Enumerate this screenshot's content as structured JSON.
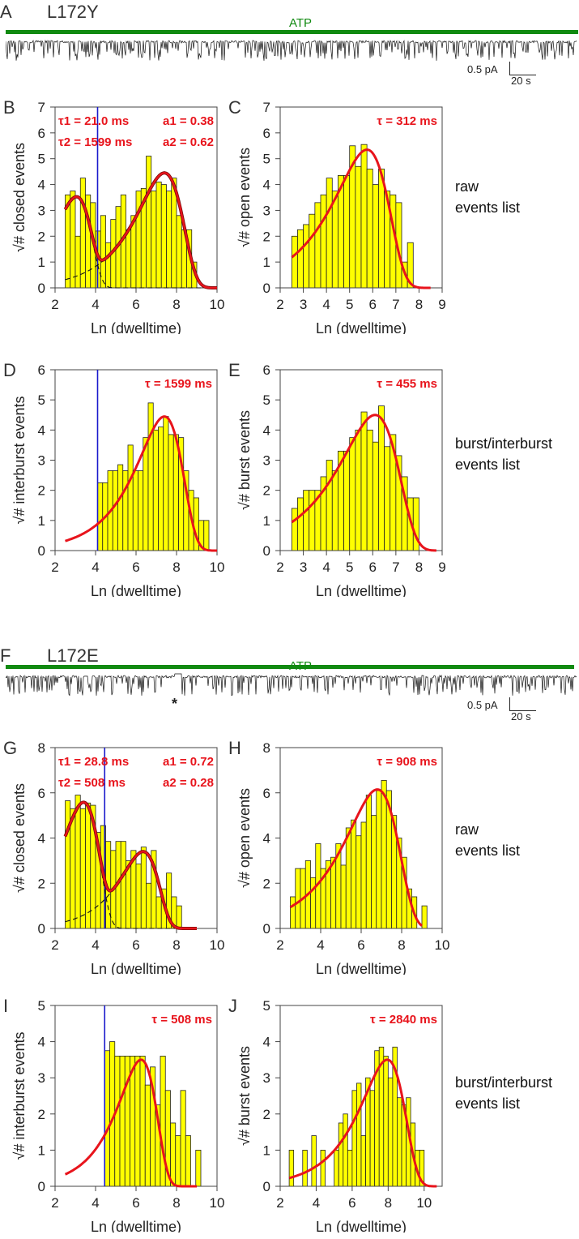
{
  "figure": {
    "section_top": {
      "panel": "A",
      "mutant": "L172Y",
      "atp_label": "ATP",
      "scale_current": "0.5 pA",
      "scale_time": "20 s"
    },
    "section_bottom": {
      "panel": "F",
      "mutant": "L172E",
      "atp_label": "ATP",
      "scale_current": "0.5 pA",
      "scale_time": "20 s",
      "marker": "*"
    },
    "row_labels": [
      {
        "line1": "raw",
        "line2": "events list"
      },
      {
        "line1": "burst/interburst",
        "line2": "events list"
      },
      {
        "line1": "raw",
        "line2": "events list"
      },
      {
        "line1": "burst/interburst",
        "line2": "events list"
      }
    ],
    "colors": {
      "bar_fill": "#ffff00",
      "fit": "#e8141c",
      "total_fit_dark": "#7a0a0a",
      "cutoff": "#1a1acc",
      "atp_bar": "#118a11"
    }
  },
  "chart_data": [
    {
      "id": "B",
      "type": "bar",
      "xlabel": "Ln (dwelltime)",
      "ylabel": "√# closed events",
      "xlim": [
        2,
        10
      ],
      "ylim": [
        0,
        7
      ],
      "xticks": [
        2,
        4,
        6,
        8,
        10
      ],
      "yticks": [
        0,
        1,
        2,
        3,
        4,
        5,
        6,
        7
      ],
      "bin_start": 2.5,
      "bin_width": 0.25,
      "values": [
        3.6,
        3.75,
        2.0,
        4.25,
        3.6,
        3.3,
        2.2,
        2.8,
        1.75,
        2.65,
        3.15,
        3.6,
        2.25,
        2.8,
        3.75,
        3.85,
        5.1,
        3.75,
        4.1,
        4.0,
        3.75,
        4.25,
        2.8,
        2.25,
        2.25,
        1.0
      ],
      "cutoff": 4.1,
      "annotations": {
        "tau1": "τ1 = 21.0 ms",
        "tau2": "τ2 = 1599 ms",
        "a1": "a1 = 0.38",
        "a2": "a2 = 0.62"
      },
      "fit": {
        "components": [
          {
            "peak_x": 3.05,
            "peak_y": 3.5,
            "width": 1.0
          },
          {
            "peak_x": 7.4,
            "peak_y": 4.45,
            "width": 1.25
          }
        ],
        "x_range": [
          2.5,
          10
        ]
      }
    },
    {
      "id": "C",
      "type": "bar",
      "xlabel": "Ln (dwelltime)",
      "ylabel": "√# open events",
      "xlim": [
        2,
        9
      ],
      "ylim": [
        0,
        7
      ],
      "xticks": [
        2,
        3,
        4,
        5,
        6,
        7,
        8,
        9
      ],
      "yticks": [
        0,
        1,
        2,
        3,
        4,
        5,
        6,
        7
      ],
      "bin_start": 2.5,
      "bin_width": 0.25,
      "values": [
        2.0,
        2.25,
        2.45,
        2.85,
        3.3,
        3.6,
        4.25,
        3.75,
        4.35,
        4.35,
        5.5,
        4.7,
        5.55,
        4.6,
        4.0,
        4.6,
        3.75,
        3.6,
        3.3,
        1.0,
        1.75
      ],
      "annotations": {
        "tau": "τ = 312 ms"
      },
      "fit": {
        "components": [
          {
            "peak_x": 5.75,
            "peak_y": 5.35,
            "width": 1.3
          }
        ],
        "x_range": [
          2.5,
          8.5
        ]
      }
    },
    {
      "id": "D",
      "type": "bar",
      "xlabel": "Ln (dwelltime)",
      "ylabel": "√# interburst events",
      "xlim": [
        2,
        10
      ],
      "ylim": [
        0,
        6
      ],
      "xticks": [
        2,
        4,
        6,
        8,
        10
      ],
      "yticks": [
        0,
        1,
        2,
        3,
        4,
        5,
        6
      ],
      "bin_start": 4.1,
      "bin_width": 0.25,
      "values": [
        2.25,
        2.25,
        2.65,
        2.65,
        2.85,
        2.65,
        3.5,
        2.65,
        2.65,
        3.75,
        4.9,
        4.0,
        4.1,
        4.45,
        3.85,
        3.85,
        3.75,
        2.65,
        2.0,
        1.75,
        1.0,
        1.0
      ],
      "cutoff": 4.1,
      "annotations": {
        "tau": "τ = 1599 ms"
      },
      "fit": {
        "components": [
          {
            "peak_x": 7.4,
            "peak_y": 4.45,
            "width": 1.25
          }
        ],
        "x_range": [
          2.5,
          10
        ]
      }
    },
    {
      "id": "E",
      "type": "bar",
      "xlabel": "Ln (dwelltime)",
      "ylabel": "√# burst events",
      "xlim": [
        2,
        9
      ],
      "ylim": [
        0,
        6
      ],
      "xticks": [
        2,
        3,
        4,
        5,
        6,
        7,
        8,
        9
      ],
      "yticks": [
        0,
        1,
        2,
        3,
        4,
        5,
        6
      ],
      "bin_start": 2.5,
      "bin_width": 0.25,
      "values": [
        1.4,
        1.75,
        2.0,
        2.0,
        2.0,
        2.45,
        3.0,
        2.65,
        3.3,
        3.3,
        3.75,
        4.0,
        4.6,
        4.0,
        3.6,
        4.8,
        3.45,
        3.85,
        3.15,
        2.45,
        1.75,
        1.75
      ],
      "annotations": {
        "tau": "τ = 455 ms"
      },
      "fit": {
        "components": [
          {
            "peak_x": 6.1,
            "peak_y": 4.5,
            "width": 1.4
          }
        ],
        "x_range": [
          2.5,
          8.75
        ]
      }
    },
    {
      "id": "G",
      "type": "bar",
      "xlabel": "Ln (dwelltime)",
      "ylabel": "√# closed events",
      "xlim": [
        2,
        10
      ],
      "ylim": [
        0,
        8
      ],
      "xticks": [
        2,
        4,
        6,
        8,
        10
      ],
      "yticks": [
        0,
        2,
        4,
        6,
        8
      ],
      "bin_start": 2.5,
      "bin_width": 0.25,
      "values": [
        5.65,
        5.3,
        5.9,
        5.3,
        5.55,
        5.45,
        4.25,
        4.55,
        3.85,
        3.45,
        3.85,
        3.85,
        3.0,
        3.45,
        2.85,
        3.6,
        2.0,
        3.45,
        1.4,
        1.75,
        2.45,
        1.4,
        1.0
      ],
      "cutoff": 4.45,
      "annotations": {
        "tau1": "τ1 = 28.8 ms",
        "tau2": "τ2 = 508 ms",
        "a1": "a1 = 0.72",
        "a2": "a2 = 0.28"
      },
      "fit": {
        "components": [
          {
            "peak_x": 3.4,
            "peak_y": 5.55,
            "width": 1.05
          },
          {
            "peak_x": 6.35,
            "peak_y": 3.4,
            "width": 1.05
          }
        ],
        "x_range": [
          2.5,
          9
        ]
      }
    },
    {
      "id": "H",
      "type": "bar",
      "xlabel": "Ln (dwelltime)",
      "ylabel": "√# open events",
      "xlim": [
        2,
        10
      ],
      "ylim": [
        0,
        8
      ],
      "xticks": [
        2,
        4,
        6,
        8,
        10
      ],
      "yticks": [
        0,
        2,
        4,
        6,
        8
      ],
      "bin_start": 2.5,
      "bin_width": 0.25,
      "values": [
        1.4,
        2.65,
        2.65,
        3.0,
        2.25,
        3.75,
        2.65,
        3.0,
        3.15,
        3.75,
        2.8,
        4.45,
        4.8,
        4.1,
        4.7,
        5.9,
        5.0,
        6.1,
        6.55,
        6.1,
        5.0,
        4.0,
        3.15,
        1.75,
        1.4,
        0,
        1.0
      ],
      "annotations": {
        "tau": "τ = 908 ms"
      },
      "fit": {
        "components": [
          {
            "peak_x": 6.8,
            "peak_y": 6.15,
            "width": 1.45
          }
        ],
        "x_range": [
          2.5,
          9
        ]
      }
    },
    {
      "id": "I",
      "type": "bar",
      "xlabel": "Ln (dwelltime)",
      "ylabel": "√# interburst events",
      "xlim": [
        2,
        10
      ],
      "ylim": [
        0,
        5
      ],
      "xticks": [
        2,
        4,
        6,
        8,
        10
      ],
      "yticks": [
        0,
        1,
        2,
        3,
        4,
        5
      ],
      "bin_start": 4.45,
      "bin_width": 0.25,
      "values": [
        3.75,
        4.0,
        3.6,
        3.6,
        3.6,
        3.6,
        3.6,
        3.6,
        2.8,
        3.3,
        2.25,
        3.6,
        2.65,
        1.75,
        1.4,
        2.65,
        1.4,
        0,
        1.0
      ],
      "cutoff": 4.45,
      "annotations": {
        "tau": "τ = 508 ms"
      },
      "fit": {
        "components": [
          {
            "peak_x": 6.25,
            "peak_y": 3.5,
            "width": 1.05
          }
        ],
        "x_range": [
          2.5,
          9
        ]
      }
    },
    {
      "id": "J",
      "type": "bar",
      "xlabel": "Ln (dwelltime)",
      "ylabel": "√# burst events",
      "xlim": [
        2,
        11
      ],
      "ylim": [
        0,
        5
      ],
      "xticks": [
        2,
        4,
        6,
        8,
        10
      ],
      "yticks": [
        0,
        1,
        2,
        3,
        4,
        5
      ],
      "bin_start": 2.5,
      "bin_width": 0.25,
      "values": [
        1.0,
        0,
        0,
        1.0,
        0,
        1.4,
        0,
        1.0,
        0,
        0,
        1.0,
        1.75,
        2.0,
        1.0,
        2.65,
        2.85,
        1.4,
        3.0,
        2.65,
        3.75,
        3.85,
        3.6,
        3.0,
        3.85,
        2.45,
        2.25,
        2.45,
        1.75,
        1.0,
        1.0
      ],
      "annotations": {
        "tau": "τ = 2840 ms"
      },
      "fit": {
        "components": [
          {
            "peak_x": 7.95,
            "peak_y": 3.5,
            "width": 1.35
          }
        ],
        "x_range": [
          2.5,
          10.7
        ]
      }
    }
  ]
}
